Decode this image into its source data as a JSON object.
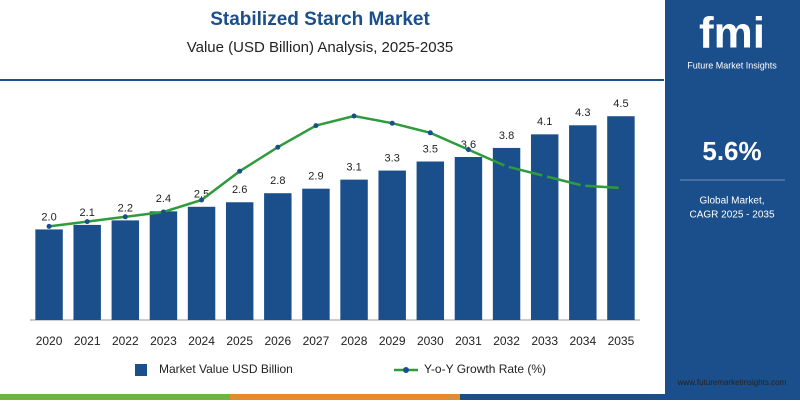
{
  "chart_data": {
    "type": "bar",
    "title": "Stabilized Starch Market",
    "subtitle": "Value (USD Billion) Analysis, 2025-2035",
    "categories": [
      "2020",
      "2021",
      "2022",
      "2023",
      "2024",
      "2025",
      "2026",
      "2027",
      "2028",
      "2029",
      "2030",
      "2031",
      "2032",
      "2033",
      "2034",
      "2035"
    ],
    "series": [
      {
        "name": "Market Value USD Billion",
        "type": "bar",
        "color": "#1b4f8c",
        "values": [
          2.0,
          2.1,
          2.2,
          2.4,
          2.5,
          2.6,
          2.8,
          2.9,
          3.1,
          3.3,
          3.5,
          3.6,
          3.8,
          4.1,
          4.3,
          4.5
        ],
        "value_labels": [
          "2.0",
          "2.1",
          "2.2",
          "2.4",
          "2.5",
          "2.6",
          "2.8",
          "2.9",
          "3.1",
          "3.3",
          "3.5",
          "3.6",
          "3.8",
          "4.1",
          "4.3",
          "4.5"
        ]
      },
      {
        "name": "Y-o-Y Growth Rate (%)",
        "type": "line",
        "axis": "y2",
        "color": "#2e9b3c",
        "values": [
          3.9,
          4.1,
          4.3,
          4.5,
          5.0,
          6.2,
          7.2,
          8.1,
          8.5,
          8.2,
          7.8,
          7.1,
          6.4,
          6.0,
          5.6,
          5.5
        ]
      }
    ],
    "ylim": [
      0,
      5.3
    ],
    "y2lim": [
      0,
      10
    ],
    "legend": "bottom"
  },
  "panel": {
    "logo": "fmi",
    "brand": "Future Market Insights",
    "cagr": "5.6%",
    "cagr_label": [
      "Global Market,",
      "CAGR 2025 - 2035"
    ],
    "website": "www.futuremarketinsights.com"
  }
}
